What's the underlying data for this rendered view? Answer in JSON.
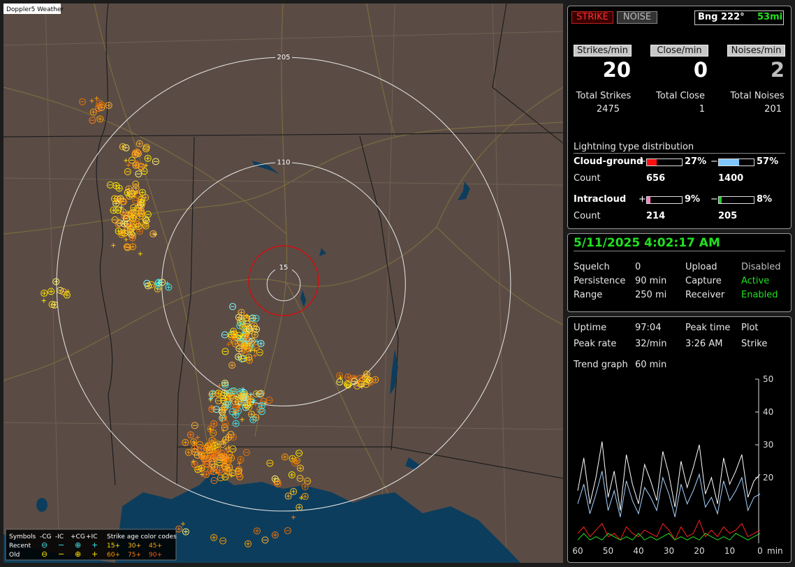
{
  "map": {
    "title": "Doppler5 Weather",
    "range_rings": [
      205,
      110,
      15
    ],
    "legend": {
      "title": "Symbols",
      "headers": [
        "-CG",
        "-IC",
        "+CG",
        "+IC"
      ],
      "rows": [
        {
          "label": "Recent",
          "symbols": [
            "⊖",
            "−",
            "⊕",
            "+"
          ]
        },
        {
          "label": "Old",
          "symbols": [
            "⊖",
            "−",
            "⊕",
            "+"
          ]
        }
      ],
      "age_title": "Strike age color codes",
      "age_codes": [
        [
          "15+",
          "30+",
          "45+"
        ],
        [
          "60+",
          "75+",
          "90+"
        ]
      ]
    }
  },
  "status": {
    "buttons": [
      "STRIKE",
      "NOISE"
    ],
    "bearing": "Bng 222°",
    "distance": "53mi"
  },
  "rates": [
    {
      "label": "Strikes/min",
      "value": 20,
      "total_label": "Total Strikes",
      "total": 2475
    },
    {
      "label": "Close/min",
      "value": 0,
      "total_label": "Total Close",
      "total": 1
    },
    {
      "label": "Noises/min",
      "value": 2,
      "total_label": "Total Noises",
      "total": 201
    }
  ],
  "distribution": {
    "title": "Lightning type distribution",
    "signs": [
      "+",
      "−"
    ],
    "count_label": "Count",
    "rows": [
      {
        "label": "Cloud-ground",
        "pos": {
          "value": 27,
          "label": "27%"
        },
        "neg": {
          "value": 57,
          "label": "57%"
        },
        "counts": [
          656,
          1400
        ]
      },
      {
        "label": "Intracloud",
        "pos": {
          "value": 9,
          "label": "9%"
        },
        "neg": {
          "value": 8,
          "label": "8%"
        },
        "counts": [
          214,
          205
        ]
      }
    ]
  },
  "clock": "5/11/2025 4:02:17 AM",
  "settings": [
    [
      "Squelch",
      "0",
      "Upload",
      "Disabled"
    ],
    [
      "Persistence",
      "90 min",
      "Capture",
      "Active"
    ],
    [
      "Range",
      "250 mi",
      "Receiver",
      "Enabled"
    ]
  ],
  "stats": [
    [
      "Uptime",
      "97:04",
      "Peak time",
      "Plot"
    ],
    [
      "Peak rate",
      "32/min",
      "3:26 AM",
      "Strike"
    ],
    [
      "Trend graph",
      "60 min"
    ]
  ],
  "trend": {
    "type": "line",
    "x": [
      60,
      58,
      56,
      54,
      52,
      50,
      48,
      46,
      44,
      42,
      40,
      38,
      36,
      34,
      32,
      30,
      28,
      26,
      24,
      22,
      20,
      18,
      16,
      14,
      12,
      10,
      8,
      6,
      4,
      2,
      0
    ],
    "xlim": [
      60,
      0
    ],
    "xticks": [
      60,
      50,
      40,
      30,
      20,
      10,
      0
    ],
    "x_unit": "min",
    "ylim": [
      0,
      50
    ],
    "yticks": [
      20,
      30,
      40,
      50
    ],
    "series": [
      {
        "color": "#ffffff",
        "values": [
          16,
          26,
          12,
          20,
          31,
          14,
          22,
          10,
          27,
          18,
          12,
          24,
          19,
          13,
          28,
          21,
          11,
          25,
          17,
          23,
          30,
          15,
          20,
          12,
          26,
          18,
          22,
          27,
          14,
          19,
          21
        ]
      },
      {
        "color": "#a8d4ff",
        "values": [
          12,
          18,
          9,
          15,
          22,
          10,
          16,
          8,
          19,
          13,
          9,
          17,
          14,
          10,
          20,
          15,
          8,
          18,
          12,
          16,
          21,
          11,
          14,
          9,
          19,
          13,
          16,
          20,
          10,
          14,
          15
        ]
      },
      {
        "color": "#ff2020",
        "values": [
          3,
          5,
          2,
          4,
          6,
          2,
          3,
          1,
          5,
          3,
          2,
          4,
          3,
          2,
          6,
          4,
          1,
          5,
          2,
          3,
          7,
          2,
          4,
          2,
          5,
          3,
          4,
          6,
          2,
          3,
          4
        ]
      },
      {
        "color": "#20e020",
        "values": [
          1,
          3,
          1,
          2,
          1,
          3,
          2,
          1,
          2,
          1,
          3,
          1,
          2,
          1,
          2,
          3,
          1,
          2,
          1,
          2,
          1,
          3,
          2,
          1,
          2,
          1,
          3,
          2,
          1,
          2,
          3
        ]
      }
    ]
  }
}
